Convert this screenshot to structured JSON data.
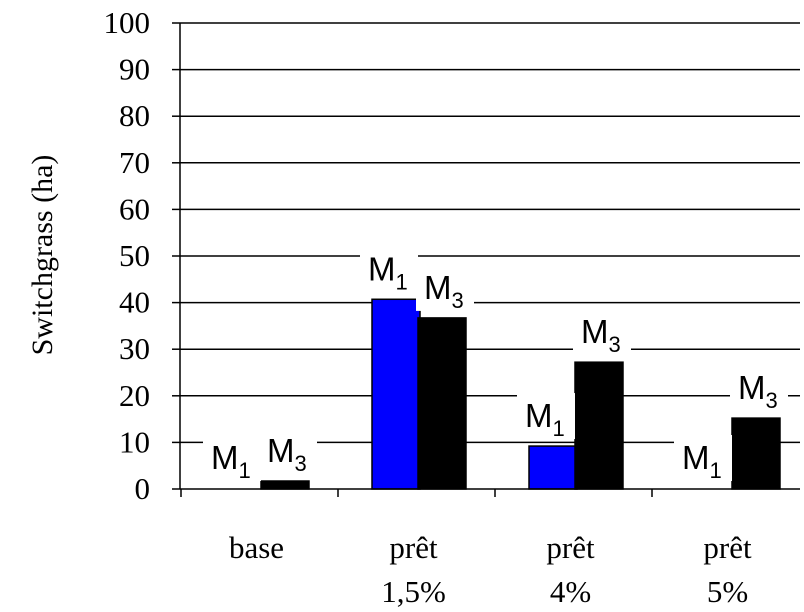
{
  "chart_data": {
    "type": "bar",
    "ylabel": "Switchgrass (ha)",
    "xlabel": "",
    "ylim": [
      0,
      100
    ],
    "yticks": [
      "0",
      "10",
      "20",
      "30",
      "40",
      "50",
      "60",
      "70",
      "80",
      "90",
      "100"
    ],
    "grid": true,
    "categories": [
      [
        "base"
      ],
      [
        "prêt",
        "1,5%"
      ],
      [
        "prêt",
        "4%"
      ],
      [
        "prêt",
        "5%"
      ]
    ],
    "series": [
      {
        "name": "M1",
        "label_main": "M",
        "label_sub": "1",
        "color": "#0000ff",
        "values": [
          0,
          40.5,
          9,
          0
        ]
      },
      {
        "name": "M3",
        "label_main": "M",
        "label_sub": "3",
        "color": "#000000",
        "values": [
          1.5,
          36.5,
          27,
          15
        ]
      }
    ]
  }
}
